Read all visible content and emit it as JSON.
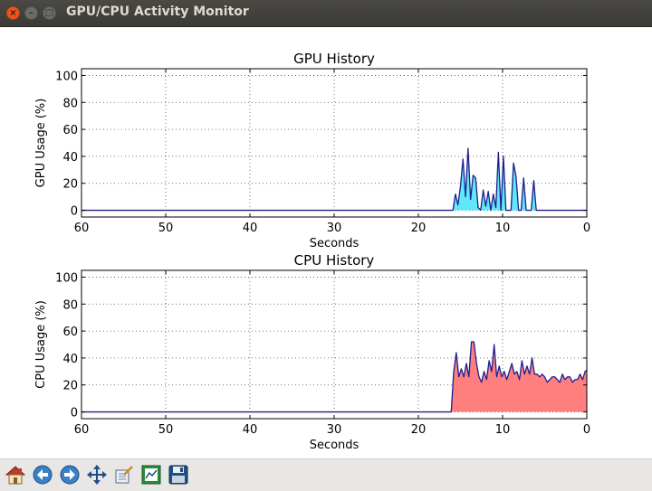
{
  "window": {
    "title": "GPU/CPU Activity Monitor"
  },
  "toolbar": {
    "buttons": [
      {
        "icon": "home-icon"
      },
      {
        "icon": "back-icon"
      },
      {
        "icon": "forward-icon"
      },
      {
        "icon": "pan-icon"
      },
      {
        "icon": "zoom-rect-icon"
      },
      {
        "icon": "subplots-config-icon"
      },
      {
        "icon": "save-icon"
      }
    ]
  },
  "chart_data": [
    {
      "type": "area",
      "title": "GPU History",
      "xlabel": "Seconds",
      "ylabel": "GPU Usage (%)",
      "xlim": [
        60,
        0
      ],
      "ylim": [
        -5,
        105
      ],
      "xticks": [
        "60",
        "50",
        "40",
        "30",
        "20",
        "10",
        "0"
      ],
      "yticks": [
        "0",
        "20",
        "40",
        "60",
        "80",
        "100"
      ],
      "grid": true,
      "fill_color": "#5fe8f6",
      "line_color": "#1f1f8f",
      "series": [
        {
          "x": [
            60,
            15.9,
            15.6,
            15.3,
            15.0,
            14.7,
            14.4,
            14.1,
            13.8,
            13.5,
            13.2,
            12.9,
            12.6,
            12.3,
            12.0,
            11.7,
            11.4,
            11.1,
            10.8,
            10.5,
            10.2,
            9.9,
            9.6,
            9.3,
            9.0,
            8.7,
            8.4,
            8.1,
            7.8,
            7.5,
            7.2,
            6.9,
            6.6,
            6.3,
            6.0,
            5.7,
            0
          ],
          "y": [
            0,
            0,
            12,
            4,
            18,
            38,
            10,
            46,
            8,
            26,
            24,
            2,
            0,
            15,
            3,
            14,
            0,
            12,
            2,
            43,
            0,
            40,
            0,
            0,
            0,
            35,
            25,
            0,
            0,
            24,
            0,
            0,
            0,
            22,
            0,
            0,
            0
          ]
        }
      ]
    },
    {
      "type": "area",
      "title": "CPU History",
      "xlabel": "Seconds",
      "ylabel": "CPU Usage (%)",
      "xlim": [
        60,
        0
      ],
      "ylim": [
        -5,
        105
      ],
      "xticks": [
        "60",
        "50",
        "40",
        "30",
        "20",
        "10",
        "0"
      ],
      "yticks": [
        "0",
        "20",
        "40",
        "60",
        "80",
        "100"
      ],
      "grid": true,
      "fill_color": "#ff7f7f",
      "line_color": "#1f1f8f",
      "series": [
        {
          "x": [
            60,
            16.1,
            15.8,
            15.5,
            15.2,
            14.9,
            14.6,
            14.3,
            14.0,
            13.7,
            13.4,
            13.1,
            12.8,
            12.5,
            12.2,
            11.9,
            11.6,
            11.3,
            11.0,
            10.7,
            10.4,
            10.1,
            9.8,
            9.5,
            9.2,
            8.9,
            8.6,
            8.3,
            8.0,
            7.7,
            7.4,
            7.1,
            6.8,
            6.5,
            6.2,
            5.9,
            5.6,
            5.3,
            5.0,
            4.7,
            4.4,
            4.1,
            3.8,
            3.5,
            3.2,
            2.9,
            2.6,
            2.3,
            2.0,
            1.7,
            1.4,
            1.1,
            0.8,
            0.5,
            0.2,
            0
          ],
          "y": [
            0,
            0,
            30,
            44,
            26,
            32,
            26,
            36,
            26,
            52,
            52,
            36,
            26,
            22,
            30,
            24,
            38,
            30,
            50,
            26,
            34,
            26,
            30,
            24,
            30,
            36,
            28,
            30,
            24,
            38,
            28,
            34,
            28,
            40,
            28,
            28,
            26,
            28,
            26,
            22,
            24,
            26,
            26,
            24,
            22,
            28,
            24,
            26,
            26,
            22,
            24,
            24,
            28,
            24,
            30,
            31
          ]
        }
      ]
    }
  ]
}
